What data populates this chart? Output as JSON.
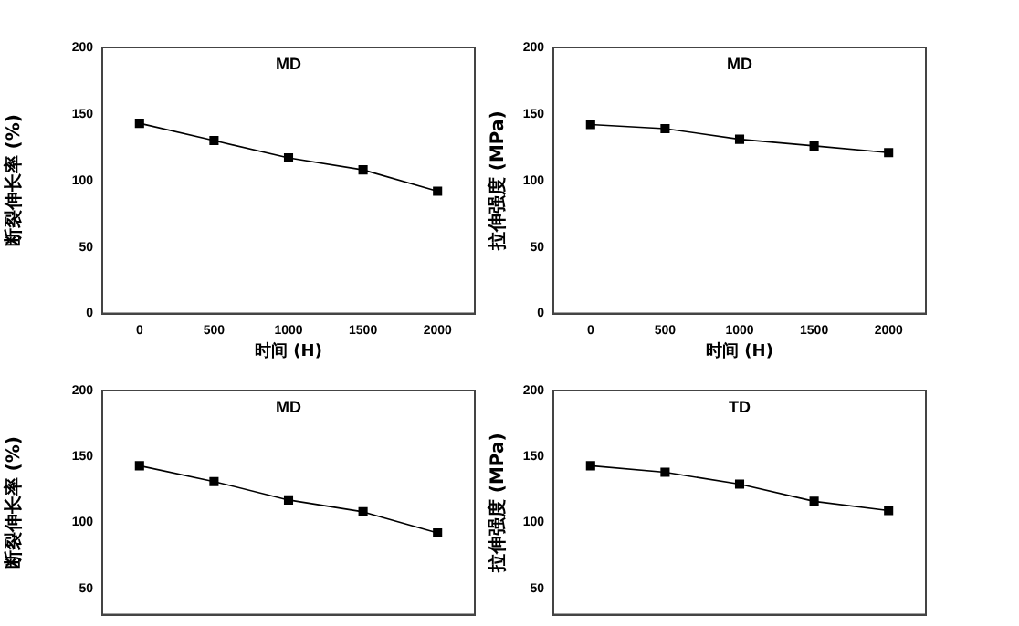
{
  "chart_data": [
    {
      "type": "line",
      "title": "MD",
      "xlabel": "时间 (H)",
      "ylabel": "断裂伸长率 (%)",
      "x": [
        0,
        500,
        1000,
        1500,
        2000
      ],
      "values": [
        143,
        130,
        117,
        108,
        92
      ],
      "color": "#000000",
      "marker": "square",
      "xlim": [
        -250,
        2250
      ],
      "xticks": [
        0,
        500,
        1000,
        1500,
        2000
      ],
      "ylim": [
        0,
        200
      ],
      "yticks": [
        0,
        50,
        100,
        150,
        200
      ],
      "grid": false
    },
    {
      "type": "line",
      "title": "MD",
      "xlabel": "时间 (H)",
      "ylabel": "拉伸强度 (MPa)",
      "x": [
        0,
        500,
        1000,
        1500,
        2000
      ],
      "values": [
        142,
        139,
        131,
        126,
        121
      ],
      "color": "#000000",
      "marker": "square",
      "xlim": [
        -250,
        2250
      ],
      "xticks": [
        0,
        500,
        1000,
        1500,
        2000
      ],
      "ylim": [
        0,
        200
      ],
      "yticks": [
        0,
        50,
        100,
        150,
        200
      ],
      "grid": false
    },
    {
      "type": "line",
      "title": "MD",
      "ylabel": "断裂伸长率 (%)",
      "x": [
        0,
        500,
        1000,
        1500,
        2000
      ],
      "values": [
        143,
        131,
        117,
        108,
        92
      ],
      "color": "#000000",
      "marker": "square",
      "xlim": [
        -250,
        2250
      ],
      "ylim": [
        30,
        200
      ],
      "yticks": [
        50,
        100,
        150,
        200
      ],
      "grid": false,
      "tick_labels": "y"
    },
    {
      "type": "line",
      "title": "TD",
      "ylabel": "拉伸强度 (MPa)",
      "x": [
        0,
        500,
        1000,
        1500,
        2000
      ],
      "values": [
        143,
        138,
        129,
        116,
        109
      ],
      "color": "#000000",
      "marker": "square",
      "xlim": [
        -250,
        2250
      ],
      "ylim": [
        30,
        200
      ],
      "yticks": [
        50,
        100,
        150,
        200
      ],
      "grid": false,
      "tick_labels": "y"
    }
  ]
}
